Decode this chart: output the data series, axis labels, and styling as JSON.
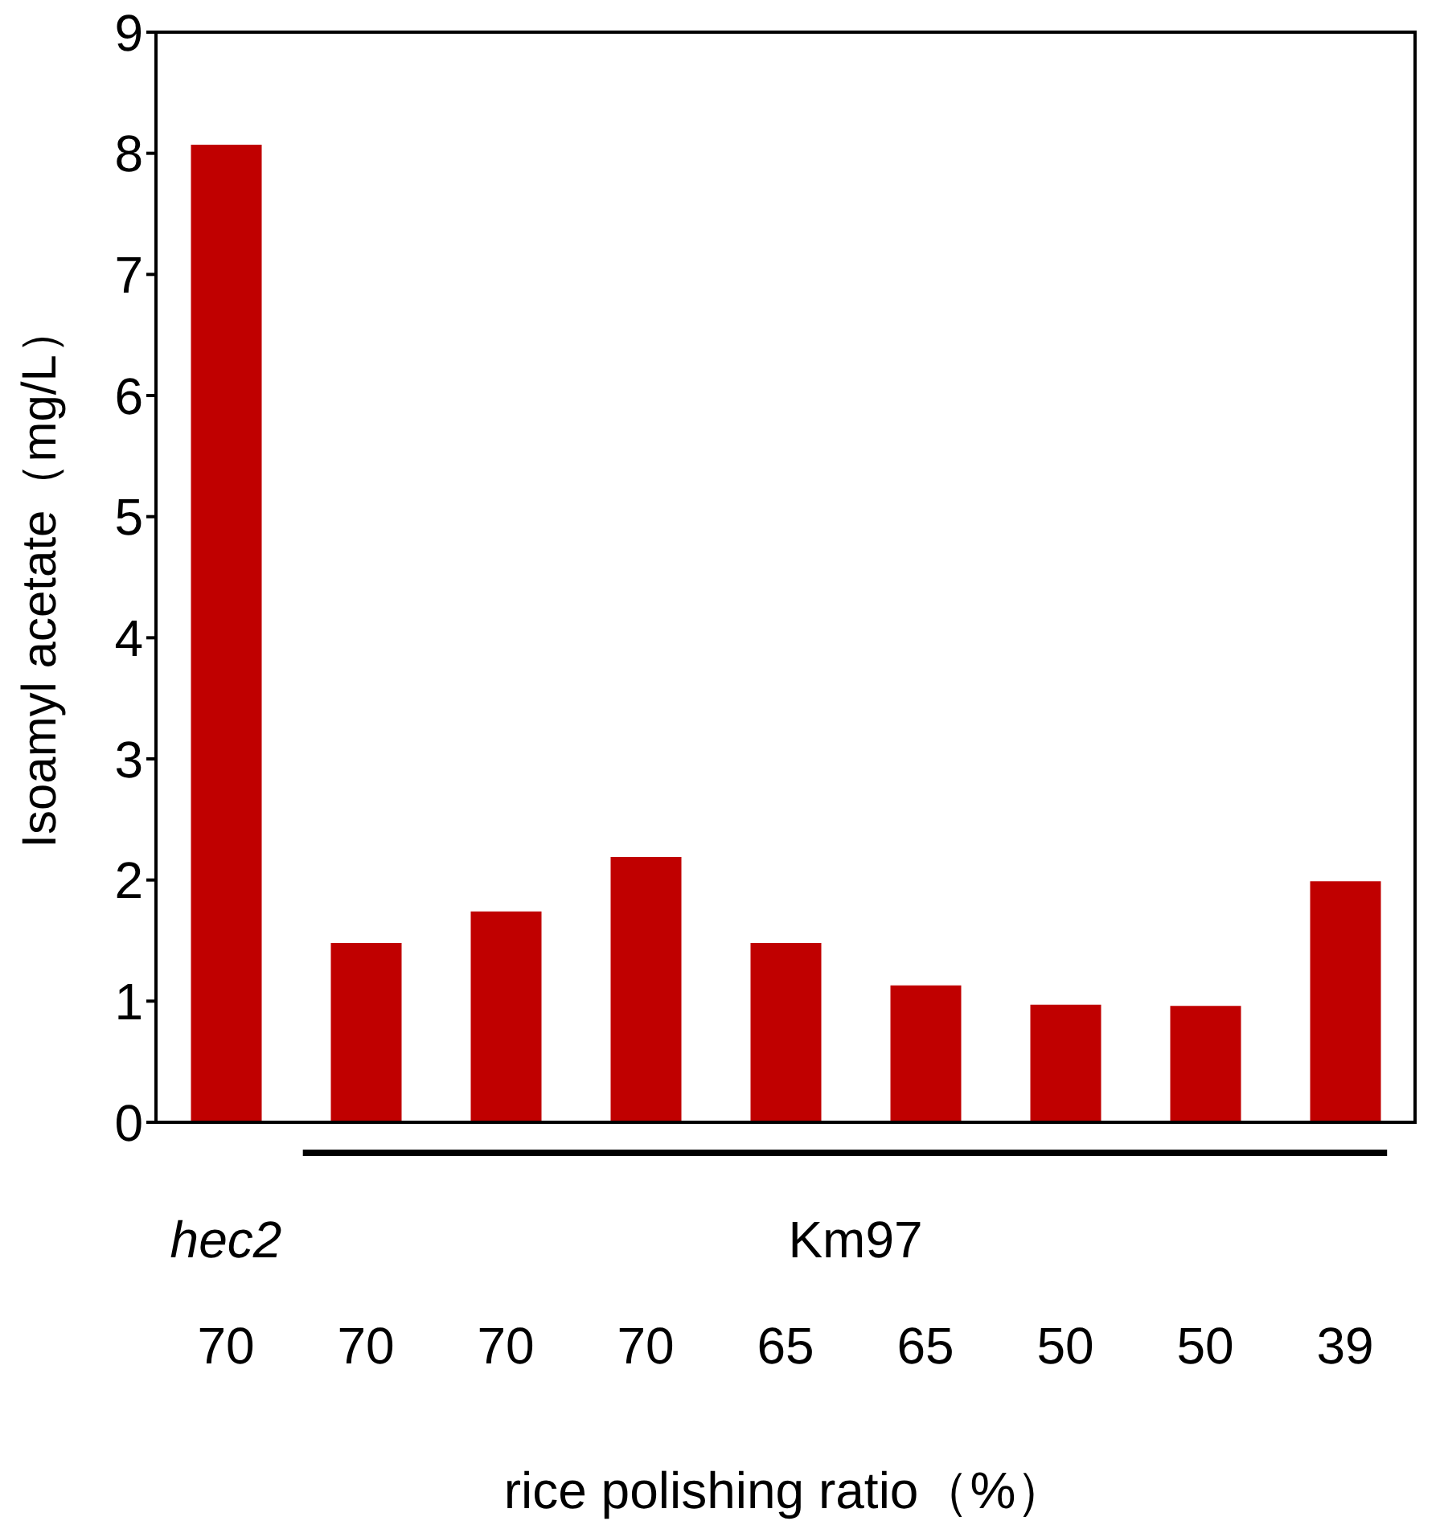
{
  "chart_data": {
    "type": "bar",
    "xlabel": "rice polishing ratio（%）",
    "ylabel": "Isoamyl acetate（mg/L）",
    "categories": [
      "70",
      "70",
      "70",
      "70",
      "65",
      "65",
      "50",
      "50",
      "39"
    ],
    "values": [
      8.07,
      1.48,
      1.74,
      2.19,
      1.48,
      1.13,
      0.97,
      0.96,
      1.99
    ],
    "color": "#c00000",
    "ylim": [
      0,
      9
    ],
    "yticks": [
      0,
      1,
      2,
      3,
      4,
      5,
      6,
      7,
      8,
      9
    ],
    "annotations": [
      "hec2",
      "Km97"
    ]
  }
}
